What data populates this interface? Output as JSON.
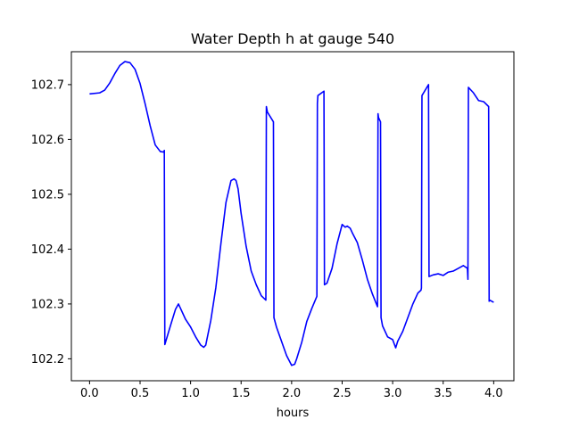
{
  "chart_data": {
    "type": "line",
    "title": "Water Depth h at gauge 540",
    "xlabel": "hours",
    "ylabel": "",
    "xlim": [
      -0.18,
      4.2
    ],
    "ylim": [
      102.16,
      102.76
    ],
    "xticks": [
      0.0,
      0.5,
      1.0,
      1.5,
      2.0,
      2.5,
      3.0,
      3.5,
      4.0
    ],
    "xtick_labels": [
      "0.0",
      "0.5",
      "1.0",
      "1.5",
      "2.0",
      "2.5",
      "3.0",
      "3.5",
      "4.0"
    ],
    "yticks": [
      102.2,
      102.3,
      102.4,
      102.5,
      102.6,
      102.7
    ],
    "ytick_labels": [
      "102.2",
      "102.3",
      "102.4",
      "102.5",
      "102.6",
      "102.7"
    ],
    "grid": false,
    "color": "#0000ff",
    "series": [
      {
        "x": [
          0.0,
          0.1,
          0.15,
          0.2,
          0.25,
          0.3,
          0.35,
          0.4,
          0.45,
          0.5,
          0.55,
          0.6,
          0.65,
          0.7,
          0.735,
          0.74,
          0.745,
          0.8,
          0.85,
          0.88,
          0.9,
          0.95,
          1.0,
          1.05,
          1.1,
          1.13,
          1.15,
          1.2,
          1.25,
          1.3,
          1.35,
          1.4,
          1.43,
          1.45,
          1.47,
          1.5,
          1.55,
          1.6,
          1.65,
          1.7,
          1.745,
          1.75,
          1.76,
          1.82,
          1.825,
          1.85,
          1.9,
          1.95,
          2.0,
          2.03,
          2.05,
          2.1,
          2.15,
          2.2,
          2.25,
          2.255,
          2.26,
          2.32,
          2.325,
          2.35,
          2.4,
          2.45,
          2.5,
          2.53,
          2.55,
          2.58,
          2.6,
          2.65,
          2.7,
          2.75,
          2.8,
          2.85,
          2.855,
          2.86,
          2.88,
          2.885,
          2.9,
          2.95,
          3.0,
          3.03,
          3.05,
          3.1,
          3.15,
          3.2,
          3.25,
          3.28,
          3.285,
          3.29,
          3.355,
          3.36,
          3.4,
          3.45,
          3.5,
          3.55,
          3.6,
          3.65,
          3.7,
          3.74,
          3.745,
          3.75,
          3.8,
          3.85,
          3.9,
          3.95,
          3.955,
          3.96,
          4.0
        ],
        "y": [
          102.683,
          102.685,
          102.69,
          102.703,
          102.72,
          102.735,
          102.742,
          102.74,
          102.728,
          102.702,
          102.665,
          102.625,
          102.59,
          102.578,
          102.577,
          102.58,
          102.226,
          102.26,
          102.29,
          102.3,
          102.292,
          102.272,
          102.258,
          102.24,
          102.225,
          102.221,
          102.225,
          102.27,
          102.33,
          102.41,
          102.485,
          102.525,
          102.528,
          102.525,
          102.51,
          102.465,
          102.405,
          102.36,
          102.335,
          102.315,
          102.307,
          102.66,
          102.65,
          102.632,
          102.275,
          102.258,
          102.232,
          102.206,
          102.188,
          102.19,
          102.2,
          102.23,
          102.268,
          102.292,
          102.314,
          102.666,
          102.68,
          102.688,
          102.335,
          102.338,
          102.365,
          102.41,
          102.445,
          102.44,
          102.442,
          102.438,
          102.43,
          102.412,
          102.38,
          102.345,
          102.318,
          102.295,
          102.647,
          102.64,
          102.632,
          102.275,
          102.26,
          102.24,
          102.235,
          102.22,
          102.232,
          102.25,
          102.275,
          102.3,
          102.32,
          102.325,
          102.329,
          102.68,
          102.7,
          102.35,
          102.353,
          102.355,
          102.352,
          102.358,
          102.36,
          102.365,
          102.37,
          102.365,
          102.345,
          102.695,
          102.685,
          102.671,
          102.669,
          102.66,
          102.305,
          102.307,
          102.303
        ]
      }
    ]
  }
}
